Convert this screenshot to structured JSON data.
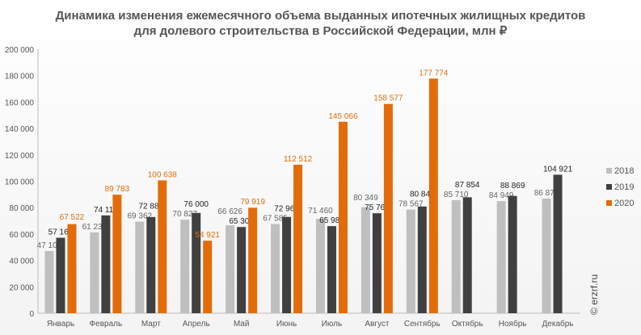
{
  "chart_data": {
    "type": "bar",
    "title": "Динамика изменения ежемесячного объема выданных ипотечных жилищных кредитов для долевого строительства в Российской Федерации, млн ₽",
    "title_lines": [
      "Динамика изменения ежемесячного объема выданных ипотечных жилищных кредитов",
      "для долевого строительства в Российской Федерации, млн ₽"
    ],
    "categories": [
      "Январь",
      "Февраль",
      "Март",
      "Апрель",
      "Май",
      "Июнь",
      "Июль",
      "Август",
      "Сентябрь",
      "Октябрь",
      "Ноябрь",
      "Декабрь"
    ],
    "series": [
      {
        "name": "2018",
        "color": "#bfbfbf",
        "values": [
          47107,
          61232,
          69362,
          70827,
          66626,
          67585,
          71460,
          80349,
          78567,
          85710,
          84949,
          86870
        ]
      },
      {
        "name": "2019",
        "color": "#404040",
        "values": [
          57160,
          74112,
          72881,
          76000,
          65307,
          72967,
          65989,
          75768,
          80846,
          87854,
          88869,
          104921
        ]
      },
      {
        "name": "2020",
        "color": "#e36c0a",
        "values": [
          67522,
          89783,
          100638,
          54921,
          79919,
          112512,
          145066,
          158577,
          177774,
          null,
          null,
          null
        ]
      }
    ],
    "ylim": [
      0,
      200000
    ],
    "yticks": [
      0,
      20000,
      40000,
      60000,
      80000,
      100000,
      120000,
      140000,
      160000,
      180000,
      200000
    ],
    "xlabel": "",
    "ylabel": "",
    "grid": false,
    "legend": "right"
  },
  "watermark": "© erzrf.ru"
}
